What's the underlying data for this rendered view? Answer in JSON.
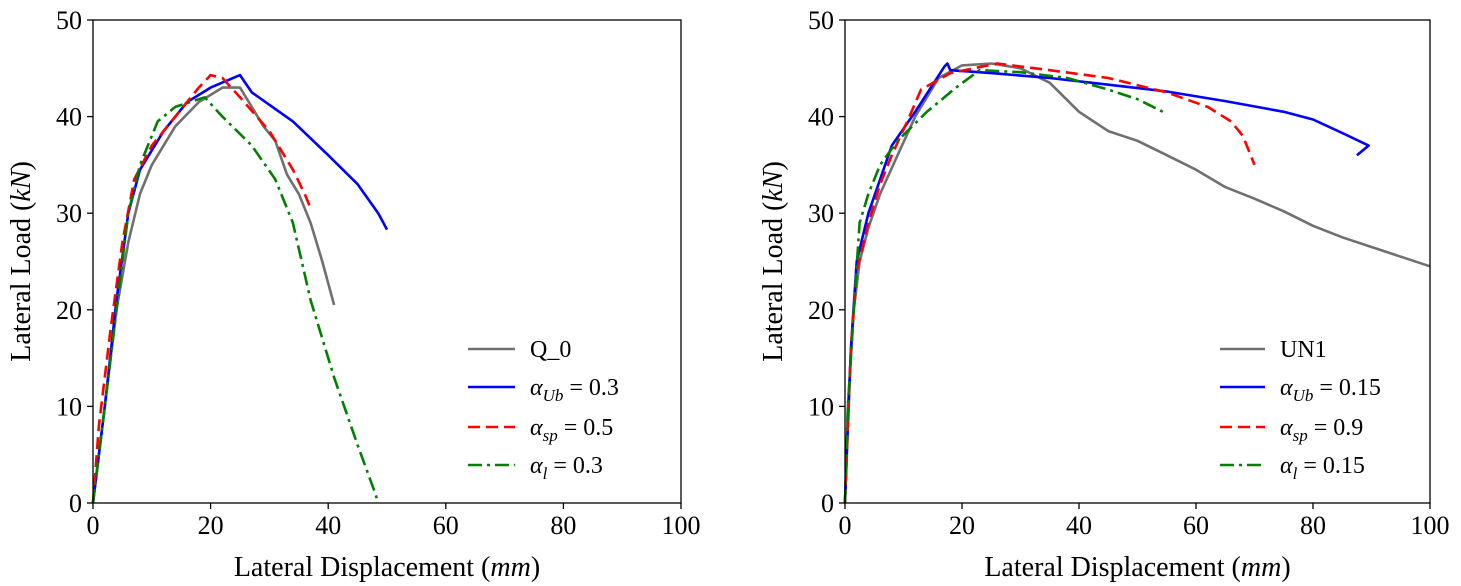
{
  "chart_data": [
    {
      "type": "line",
      "xlabel": {
        "prefix": "Lateral Displacement (",
        "italic": "mm",
        "suffix": ")"
      },
      "ylabel": {
        "prefix": "Lateral Load (",
        "italic": "kN",
        "suffix": ")"
      },
      "xlim": [
        0,
        100
      ],
      "ylim": [
        0,
        50
      ],
      "xticks": [
        0,
        20,
        40,
        60,
        80,
        100
      ],
      "yticks": [
        0,
        10,
        20,
        30,
        40,
        50
      ],
      "grid": false,
      "legend": "bottom-right",
      "series": [
        {
          "name": {
            "sym": "",
            "sub": "",
            "rest": "Q_0"
          },
          "color": "#707070",
          "dash": "solid",
          "x": [
            0,
            2,
            4,
            6,
            8,
            10,
            14,
            18,
            22,
            25,
            27,
            29,
            31,
            33,
            35,
            37,
            39,
            41
          ],
          "y": [
            0,
            10,
            20,
            27,
            32,
            35,
            39,
            41.5,
            43,
            43,
            41,
            39,
            37.5,
            34,
            32,
            29,
            25,
            20.5
          ]
        },
        {
          "name": {
            "sym": "α",
            "sub": "Ub",
            "rest": " = 0.3"
          },
          "color": "#0000ff",
          "dash": "solid",
          "x": [
            0,
            2,
            4,
            6,
            8,
            12,
            16,
            20,
            25,
            27,
            34,
            40,
            45,
            48.5,
            50
          ],
          "y": [
            0,
            10,
            21,
            30,
            34.5,
            38.5,
            41.5,
            43,
            44.3,
            42.5,
            39.5,
            36,
            33,
            30,
            28.3
          ]
        },
        {
          "name": {
            "sym": "α",
            "sub": "sp",
            "rest": " = 0.5"
          },
          "color": "#ff0000",
          "dash": "dashed",
          "x": [
            0,
            1,
            3,
            5,
            7,
            10,
            14,
            18,
            20,
            22,
            25,
            30,
            34,
            36,
            37
          ],
          "y": [
            0,
            8,
            18,
            27,
            33.5,
            37,
            40,
            43,
            44.3,
            44,
            42,
            38.5,
            34.5,
            32,
            30.5
          ]
        },
        {
          "name": {
            "sym": "α",
            "sub": "l",
            "rest": " = 0.3"
          },
          "color": "#008000",
          "dash": "dashdot",
          "x": [
            0,
            2,
            4,
            6,
            8,
            11,
            14,
            19,
            22,
            27,
            31,
            34,
            37,
            41,
            45,
            48,
            48.5
          ],
          "y": [
            0,
            10,
            20,
            30,
            35,
            39.5,
            41,
            42,
            40,
            37,
            33.5,
            29,
            21,
            13,
            6,
            1,
            0
          ]
        }
      ]
    },
    {
      "type": "line",
      "xlabel": {
        "prefix": "Lateral Displacement (",
        "italic": "mm",
        "suffix": ")"
      },
      "ylabel": {
        "prefix": "Lateral Load (",
        "italic": "kN",
        "suffix": ")"
      },
      "xlim": [
        0,
        100
      ],
      "ylim": [
        0,
        50
      ],
      "xticks": [
        0,
        20,
        40,
        60,
        80,
        100
      ],
      "yticks": [
        0,
        10,
        20,
        30,
        40,
        50
      ],
      "grid": false,
      "legend": "bottom-right",
      "series": [
        {
          "name": {
            "sym": "",
            "sub": "",
            "rest": "UN1"
          },
          "color": "#707070",
          "dash": "solid",
          "x": [
            0,
            0.5,
            1.5,
            2.5,
            4,
            6,
            9,
            12,
            16,
            20,
            25,
            30,
            35,
            40,
            45,
            50,
            55,
            60,
            65,
            70,
            75,
            80,
            85,
            90,
            95,
            100
          ],
          "y": [
            0,
            10,
            20,
            25,
            28.5,
            32,
            36,
            40,
            44,
            45.3,
            45.5,
            45,
            43.5,
            40.5,
            38.5,
            37.5,
            36,
            34.5,
            32.7,
            31.5,
            30.2,
            28.7,
            27.5,
            26.5,
            25.5,
            24.5
          ]
        },
        {
          "name": {
            "sym": "α",
            "sub": "Ub",
            "rest": " = 0.15"
          },
          "color": "#0000ff",
          "dash": "solid",
          "x": [
            0,
            0.5,
            1,
            2,
            4,
            6,
            8,
            12,
            17,
            17.5,
            18,
            25,
            35,
            45,
            55,
            65,
            75,
            80,
            85,
            89.5,
            87.5
          ],
          "y": [
            0,
            8,
            16,
            25,
            30,
            33.5,
            37,
            40.5,
            45.2,
            45.5,
            44.8,
            44.5,
            44,
            43.3,
            42.6,
            41.6,
            40.5,
            39.7,
            38.3,
            37,
            36
          ]
        },
        {
          "name": {
            "sym": "α",
            "sub": "sp",
            "rest": " = 0.9"
          },
          "color": "#ff0000",
          "dash": "dashed",
          "x": [
            0,
            0.5,
            1,
            2,
            4,
            6,
            8,
            11,
            13,
            18,
            26,
            35,
            45,
            55,
            62,
            66,
            68,
            69,
            70
          ],
          "y": [
            0,
            8,
            16,
            24,
            29,
            33,
            36,
            40,
            42.8,
            44.5,
            45.5,
            44.8,
            44,
            42.5,
            41,
            39.5,
            38,
            36.5,
            35
          ]
        },
        {
          "name": {
            "sym": "α",
            "sub": "l",
            "rest": " = 0.15"
          },
          "color": "#008000",
          "dash": "dashdot",
          "x": [
            0,
            0.5,
            1.5,
            2.5,
            4,
            6,
            9,
            14,
            19,
            23,
            30,
            38,
            45,
            50,
            55
          ],
          "y": [
            0,
            10,
            20,
            29,
            32,
            35,
            37.5,
            40.5,
            43,
            44.8,
            44.6,
            44,
            42.8,
            41.8,
            40.3
          ]
        }
      ]
    }
  ]
}
